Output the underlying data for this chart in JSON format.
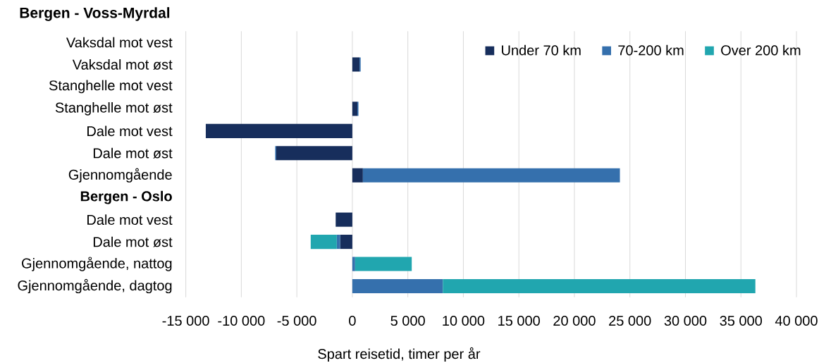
{
  "chart_data": {
    "type": "bar",
    "orientation": "horizontal",
    "stacked": true,
    "title": "Bergen - Voss-Myrdal",
    "xlabel": "Spart reisetid, timer per år",
    "categories": [
      "Vaksdal mot vest",
      "Vaksdal mot øst",
      "Stanghelle mot vest",
      "Stanghelle mot øst",
      "Dale mot vest",
      "Dale mot øst",
      "Gjennomgående",
      "**Bergen - Oslo**",
      "Dale mot vest",
      "Dale mot øst",
      "Gjennomgående, nattog",
      "Gjennomgående, dagtog"
    ],
    "series": [
      {
        "name": "Under 70 km",
        "color": "#172e5c",
        "values": [
          null,
          650,
          null,
          450,
          -13200,
          -6850,
          950,
          null,
          -1500,
          -1100,
          null,
          null
        ]
      },
      {
        "name": "70-200 km",
        "color": "#3570ad",
        "values": [
          null,
          100,
          null,
          100,
          null,
          -100,
          23150,
          null,
          null,
          -300,
          250,
          8150
        ]
      },
      {
        "name": "Over 200 km",
        "color": "#21a6af",
        "values": [
          null,
          null,
          null,
          null,
          null,
          null,
          null,
          null,
          null,
          -2350,
          5100,
          28150
        ]
      }
    ],
    "xlim": [
      -15000,
      40000
    ],
    "xticks": [
      {
        "value": -15000,
        "label": "-15 000"
      },
      {
        "value": -10000,
        "label": "-10 000"
      },
      {
        "value": -5000,
        "label": "-5 000"
      },
      0,
      {
        "value": 5000,
        "label": "5 000"
      },
      {
        "value": 10000,
        "label": "10 000"
      },
      {
        "value": 15000,
        "label": "15 000"
      },
      {
        "value": 20000,
        "label": "20 000"
      },
      {
        "value": 25000,
        "label": "25 000"
      },
      {
        "value": 30000,
        "label": "30 000"
      },
      {
        "value": 35000,
        "label": "35 000"
      },
      {
        "value": 40000,
        "label": "40 000"
      }
    ],
    "grid": "x",
    "legend": "top right"
  }
}
